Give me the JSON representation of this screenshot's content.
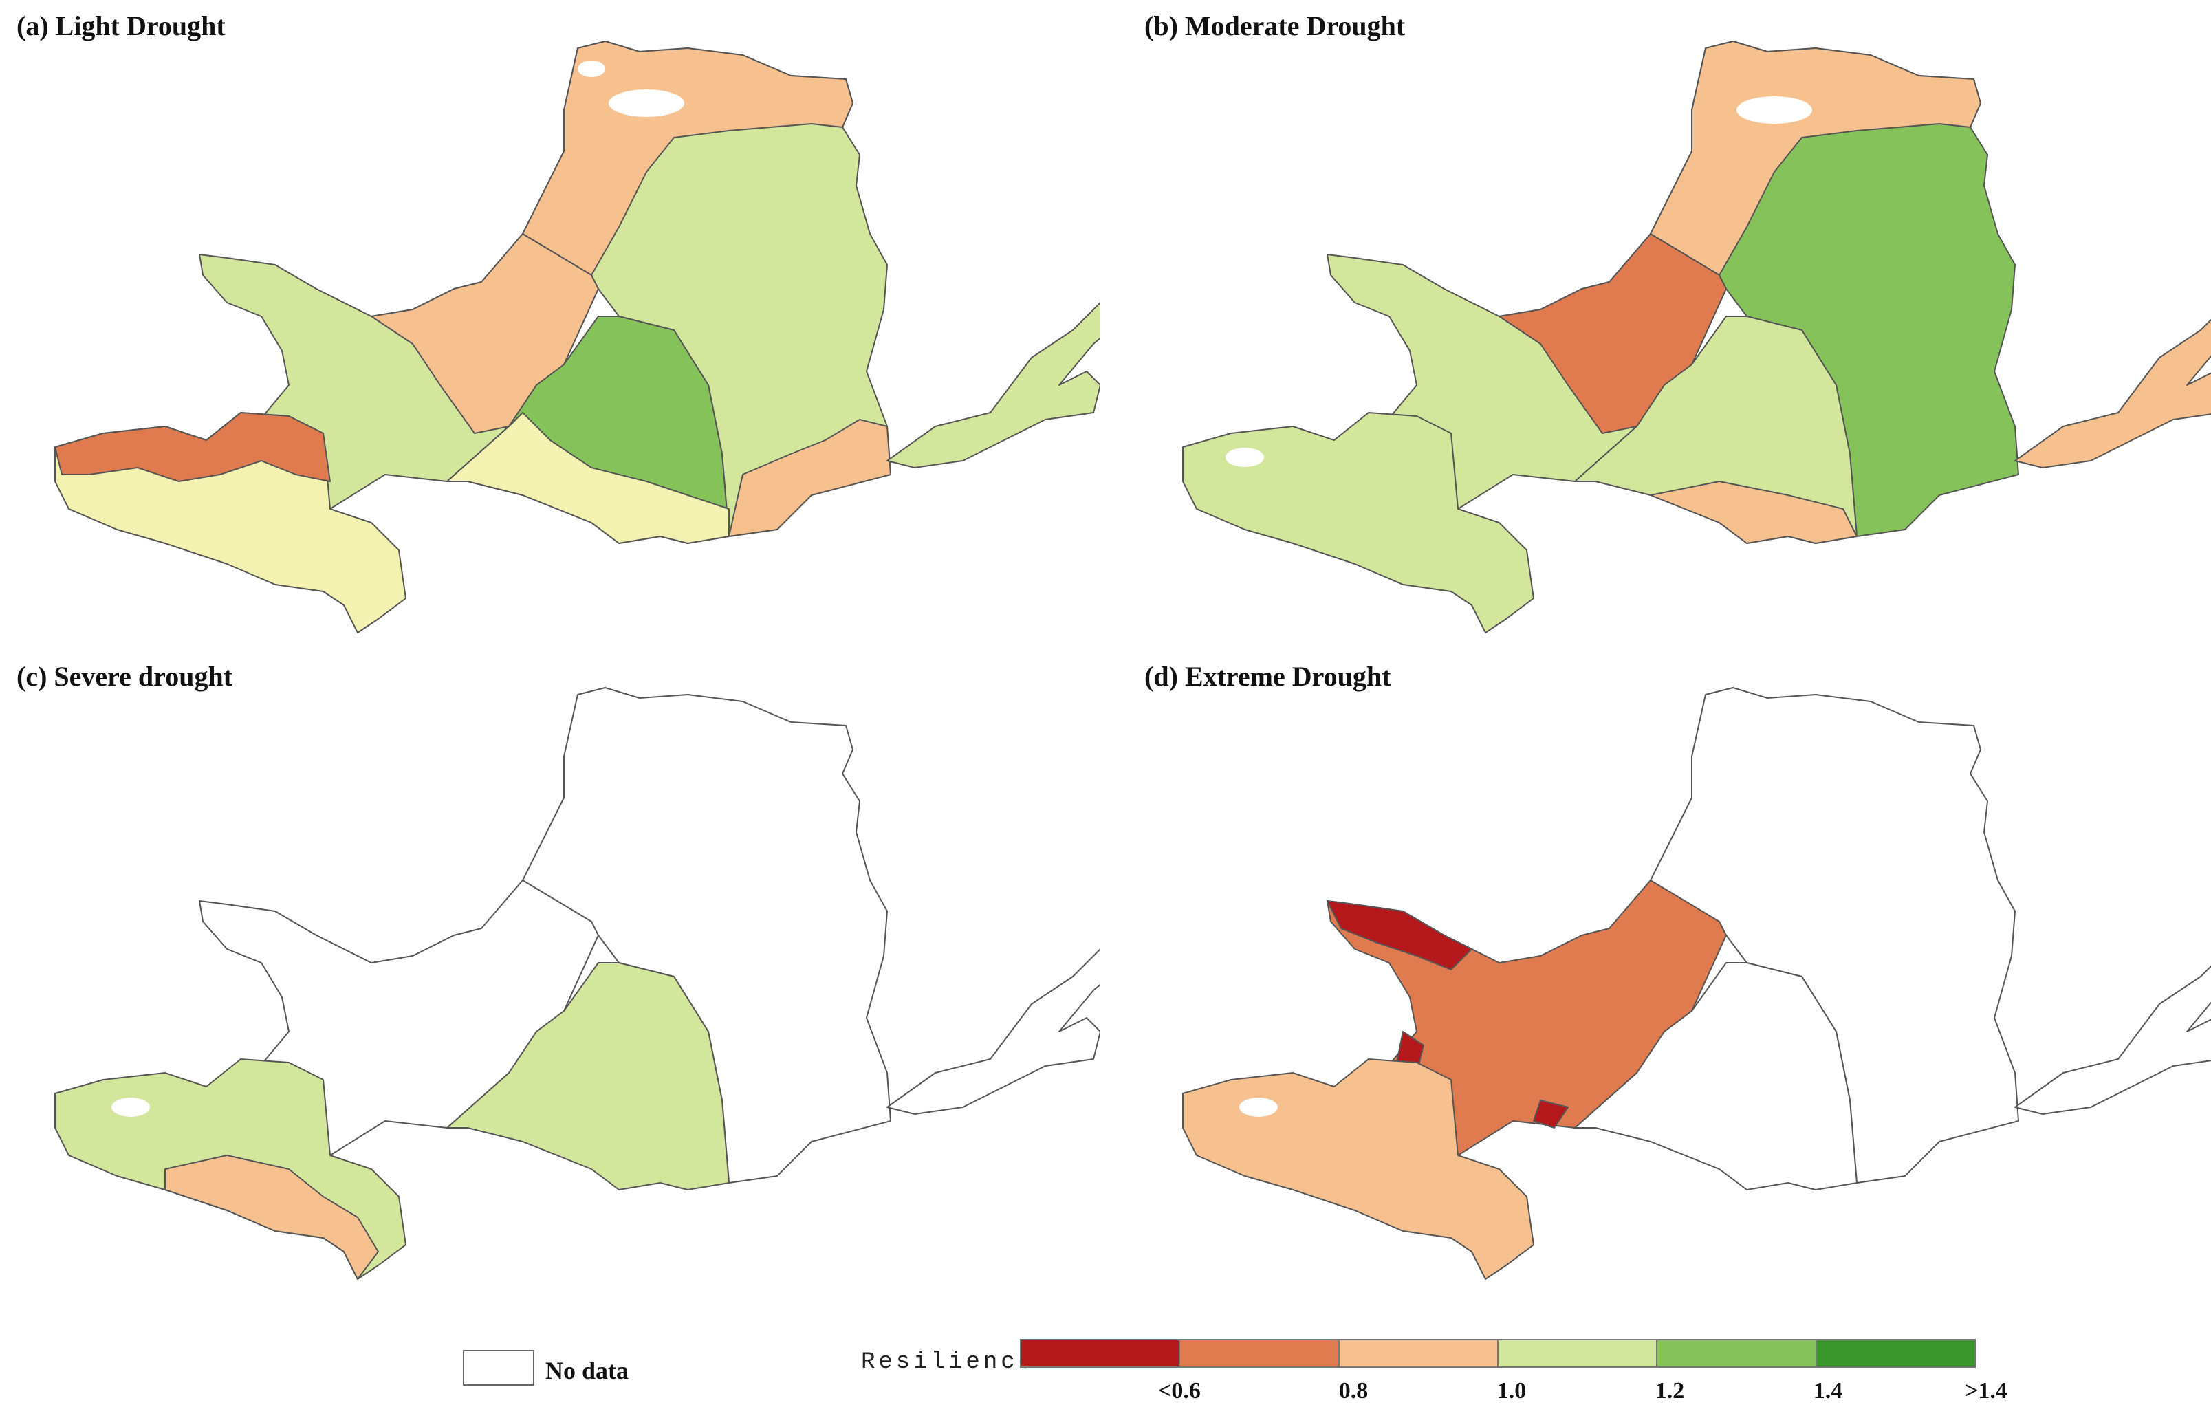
{
  "panels": [
    {
      "label": "(a) Light Drought"
    },
    {
      "label": "(b) Moderate Drought"
    },
    {
      "label": "(c) Severe drought"
    },
    {
      "label": "(d) Extreme Drought"
    }
  ],
  "legend": {
    "title": "Resilience",
    "no_data_label": "No data",
    "classes": [
      {
        "range": "<0.6",
        "color": "#b5181b"
      },
      {
        "range": "0.6-0.8",
        "color": "#e07a4f"
      },
      {
        "range": "0.8-1.0",
        "color": "#f6c08f"
      },
      {
        "range": "1.0-1.2",
        "color": "#d2e69c"
      },
      {
        "range": "1.2-1.4",
        "color": "#85c25a"
      },
      {
        "range": ">1.4",
        "color": "#3b962d"
      }
    ],
    "ticks": [
      "<0.6",
      "0.8",
      "1.0",
      "1.2",
      "1.4",
      ">1.4"
    ]
  }
}
